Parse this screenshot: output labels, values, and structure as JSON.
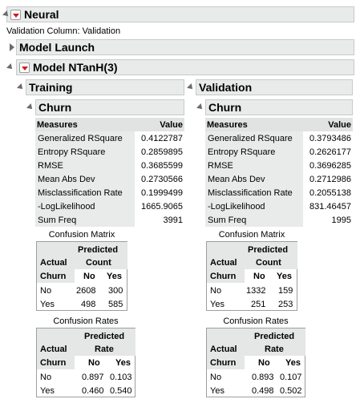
{
  "app": {
    "title": "Neural",
    "validation_column": "Validation Column: Validation"
  },
  "model_launch": {
    "title": "Model Launch"
  },
  "model": {
    "title": "Model NTanH(3)"
  },
  "training": {
    "title": "Training",
    "subtitle": "Churn",
    "measures_header": "Measures",
    "value_header": "Value",
    "rows": [
      {
        "label": "Generalized RSquare",
        "value": "0.4122787"
      },
      {
        "label": "Entropy RSquare",
        "value": "0.2859895"
      },
      {
        "label": "RMSE",
        "value": "0.3685599"
      },
      {
        "label": "Mean Abs Dev",
        "value": "0.2730566"
      },
      {
        "label": "Misclassification Rate",
        "value": "0.1999499"
      },
      {
        "label": "-LogLikelihood",
        "value": "1665.9065"
      },
      {
        "label": "Sum Freq",
        "value": "3991"
      }
    ],
    "confusion_matrix": {
      "caption": "Confusion Matrix",
      "predicted": "Predicted",
      "unit": "Count",
      "actual": "Actual",
      "row_var": "Churn",
      "col_no": "No",
      "col_yes": "Yes",
      "rows": [
        {
          "label": "No",
          "no": "2608",
          "yes": "300"
        },
        {
          "label": "Yes",
          "no": "498",
          "yes": "585"
        }
      ]
    },
    "confusion_rates": {
      "caption": "Confusion Rates",
      "predicted": "Predicted",
      "unit": "Rate",
      "actual": "Actual",
      "row_var": "Churn",
      "col_no": "No",
      "col_yes": "Yes",
      "rows": [
        {
          "label": "No",
          "no": "0.897",
          "yes": "0.103"
        },
        {
          "label": "Yes",
          "no": "0.460",
          "yes": "0.540"
        }
      ]
    }
  },
  "validation": {
    "title": "Validation",
    "subtitle": "Churn",
    "measures_header": "Measures",
    "value_header": "Value",
    "rows": [
      {
        "label": "Generalized RSquare",
        "value": "0.3793486"
      },
      {
        "label": "Entropy RSquare",
        "value": "0.2626177"
      },
      {
        "label": "RMSE",
        "value": "0.3696285"
      },
      {
        "label": "Mean Abs Dev",
        "value": "0.2712986"
      },
      {
        "label": "Misclassification Rate",
        "value": "0.2055138"
      },
      {
        "label": "-LogLikelihood",
        "value": "831.46457"
      },
      {
        "label": "Sum Freq",
        "value": "1995"
      }
    ],
    "confusion_matrix": {
      "caption": "Confusion Matrix",
      "predicted": "Predicted",
      "unit": "Count",
      "actual": "Actual",
      "row_var": "Churn",
      "col_no": "No",
      "col_yes": "Yes",
      "rows": [
        {
          "label": "No",
          "no": "1332",
          "yes": "159"
        },
        {
          "label": "Yes",
          "no": "251",
          "yes": "253"
        }
      ]
    },
    "confusion_rates": {
      "caption": "Confusion Rates",
      "predicted": "Predicted",
      "unit": "Rate",
      "actual": "Actual",
      "row_var": "Churn",
      "col_no": "No",
      "col_yes": "Yes",
      "rows": [
        {
          "label": "No",
          "no": "0.893",
          "yes": "0.107"
        },
        {
          "label": "Yes",
          "no": "0.498",
          "yes": "0.502"
        }
      ]
    }
  }
}
